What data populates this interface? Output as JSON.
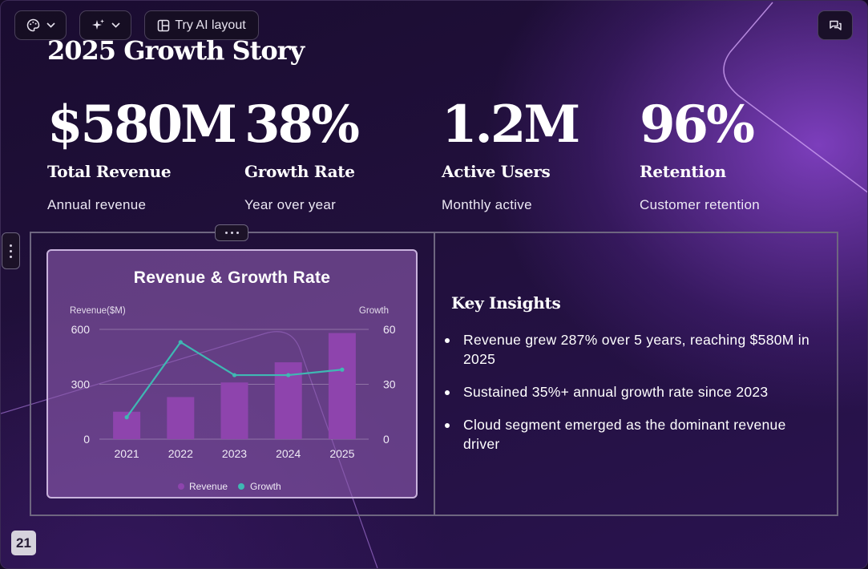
{
  "toolbar": {
    "try_ai_label": "Try AI layout"
  },
  "slide": {
    "title": "2025 Growth Story",
    "stats": [
      {
        "value": "$580M",
        "label": "Total Revenue",
        "desc": "Annual revenue"
      },
      {
        "value": "38%",
        "label": "Growth Rate",
        "desc": "Year over year"
      },
      {
        "value": "1.2M",
        "label": "Active Users",
        "desc": "Monthly active"
      },
      {
        "value": "96%",
        "label": "Retention",
        "desc": "Customer retention"
      }
    ],
    "insights_title": "Key Insights",
    "insights": [
      "Revenue grew 287% over 5 years, reaching $580M in 2025",
      "Sustained 35%+ annual growth rate since 2023",
      "Cloud segment emerged as the dominant revenue driver"
    ],
    "page_number": "21"
  },
  "colors": {
    "bar": "#8e44ad",
    "line": "#3fb8b3"
  },
  "chart_data": {
    "type": "bar",
    "title": "Revenue & Growth Rate",
    "categories": [
      "2021",
      "2022",
      "2023",
      "2024",
      "2025"
    ],
    "y_left_label": "Revenue($M)",
    "y_right_label": "Growth",
    "y_left_range": [
      0,
      600
    ],
    "y_left_ticks": [
      "0",
      "300",
      "600"
    ],
    "y_right_range": [
      0,
      60
    ],
    "y_right_ticks": [
      "0",
      "30",
      "60"
    ],
    "series": [
      {
        "name": "Revenue",
        "type": "bar",
        "axis": "left",
        "values": [
          150,
          230,
          310,
          420,
          580
        ]
      },
      {
        "name": "Growth",
        "type": "line",
        "axis": "right",
        "values": [
          12,
          53,
          35,
          35,
          38
        ]
      }
    ],
    "legend_position": "bottom",
    "grid": true
  }
}
